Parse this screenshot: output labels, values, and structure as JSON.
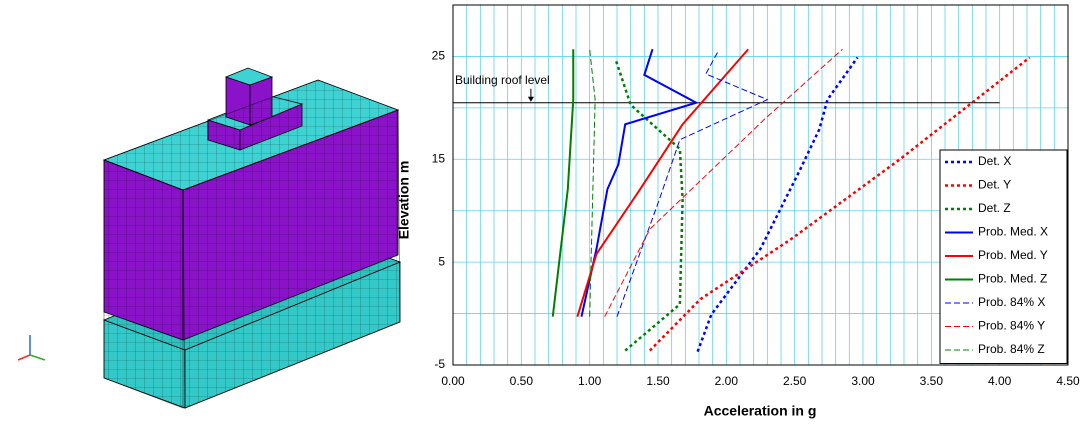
{
  "chart_data": {
    "type": "line",
    "xlabel": "Acceleration in g",
    "ylabel": "Elevation m",
    "xlim": [
      0,
      4.5
    ],
    "ylim": [
      -5,
      30
    ],
    "xticks": [
      {
        "value": 0,
        "label": "0.00"
      },
      {
        "value": 0.5,
        "label": "0.50"
      },
      {
        "value": 1,
        "label": "1.00"
      },
      {
        "value": 1.5,
        "label": "1.50"
      },
      {
        "value": 2,
        "label": "2.00"
      },
      {
        "value": 2.5,
        "label": "2.50"
      },
      {
        "value": 3,
        "label": "3.00"
      },
      {
        "value": 3.5,
        "label": "3.50"
      },
      {
        "value": 4,
        "label": "4.00"
      },
      {
        "value": 4.5,
        "label": "4.50"
      }
    ],
    "yticks": [
      -5,
      5,
      15,
      25
    ],
    "minor_xticks": [
      0.1,
      0.2,
      0.3,
      0.4,
      0.6,
      0.7,
      0.8,
      0.9,
      1.1,
      1.2,
      1.3,
      1.4,
      1.6,
      1.7,
      1.8,
      1.9,
      2.1,
      2.2,
      2.3,
      2.4,
      2.6,
      2.7,
      2.8,
      2.9,
      3.1,
      3.2,
      3.3,
      3.4,
      3.6,
      3.7,
      3.8,
      3.9,
      4.1,
      4.2,
      4.3,
      4.4
    ],
    "minor_yticks": [
      0,
      10,
      20,
      30
    ],
    "grid": true,
    "grid_color": "#5fd3ee",
    "legend": "right",
    "annotation": {
      "text": "Building roof level",
      "y": 20.5,
      "x_end": 4.0,
      "arrow_x": 0.57
    },
    "series": [
      {
        "name": "Det. X",
        "color": "#0000ff",
        "dash": "dot",
        "x": [
          1.79,
          1.89,
          2.25,
          2.54,
          2.68,
          2.74,
          2.96
        ],
        "values": [
          -3.7,
          -0.1,
          6.3,
          14.0,
          17.9,
          20.8,
          24.9
        ]
      },
      {
        "name": "Det. Y",
        "color": "#ff0000",
        "dash": "dot",
        "x": [
          1.44,
          1.81,
          2.47,
          3.27,
          4.22
        ],
        "values": [
          -3.6,
          1.4,
          7.2,
          15.0,
          24.9
        ]
      },
      {
        "name": "Det. Z",
        "color": "#008000",
        "dash": "dot",
        "x": [
          1.26,
          1.66,
          1.68,
          1.66,
          1.3,
          1.19
        ],
        "values": [
          -3.6,
          0.9,
          11.1,
          16.0,
          20.3,
          24.7
        ]
      },
      {
        "name": "Prob. Med. X",
        "color": "#0000ff",
        "dash": "solid",
        "x": [
          0.94,
          1.05,
          1.13,
          1.21,
          1.26,
          1.78,
          1.4,
          1.46
        ],
        "values": [
          -0.3,
          6.3,
          12.1,
          14.5,
          18.4,
          20.5,
          23.2,
          25.7
        ]
      },
      {
        "name": "Prob. Med. Y",
        "color": "#ff0000",
        "dash": "solid",
        "x": [
          0.91,
          1.05,
          1.37,
          1.68,
          2.16
        ],
        "values": [
          -0.3,
          5.8,
          12.1,
          18.4,
          25.7
        ]
      },
      {
        "name": "Prob. Med. Z",
        "color": "#008000",
        "dash": "solid",
        "x": [
          0.73,
          0.84,
          0.88,
          0.88
        ],
        "values": [
          -0.3,
          12.1,
          20.8,
          25.7
        ]
      },
      {
        "name": "Prob. 84% X",
        "color": "#0000ff",
        "dash": "dash",
        "x": [
          1.2,
          1.51,
          1.66,
          2.3,
          1.85,
          1.94
        ],
        "values": [
          -0.3,
          11.1,
          16.9,
          20.8,
          23.3,
          25.5
        ]
      },
      {
        "name": "Prob. 84% Y",
        "color": "#ff0000",
        "dash": "dash",
        "x": [
          1.11,
          1.44,
          2.28,
          2.85
        ],
        "values": [
          -0.3,
          8.2,
          18.9,
          25.7
        ]
      },
      {
        "name": "Prob. 84% Z",
        "color": "#008000",
        "dash": "dash",
        "x": [
          1.0,
          1.04,
          1.0
        ],
        "values": [
          -0.3,
          20.8,
          25.7
        ]
      }
    ]
  }
}
